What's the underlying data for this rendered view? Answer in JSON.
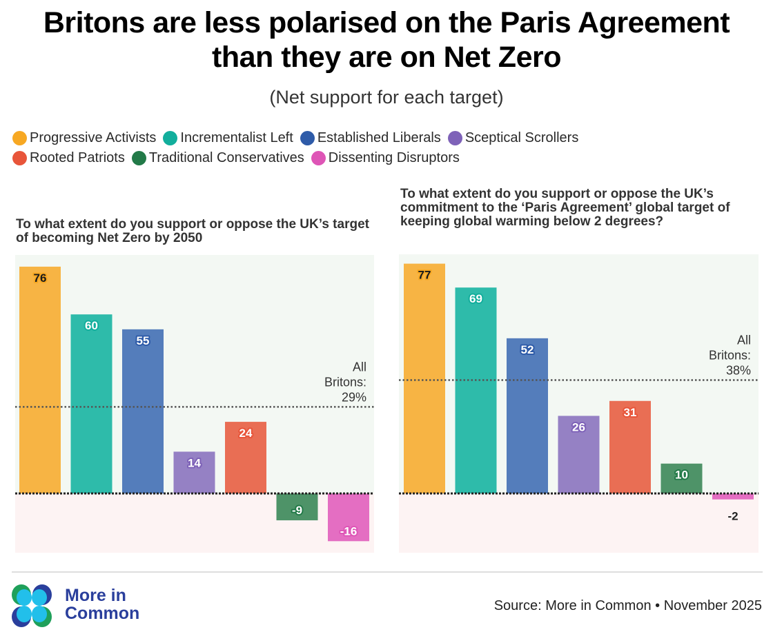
{
  "title_line1": "Britons are less polarised on the Paris Agreement",
  "title_line2": "than they are on Net Zero",
  "subtitle": "(Net support for each target)",
  "legend": {
    "row1": [
      {
        "label": "Progressive Activists",
        "color": "#F7A823"
      },
      {
        "label": "Incrementalist Left",
        "color": "#12AE9C"
      },
      {
        "label": "Established Liberals",
        "color": "#2E5BA8"
      },
      {
        "label": "Sceptical Scrollers",
        "color": "#7E62B8"
      }
    ],
    "row2": [
      {
        "label": "Rooted Patriots",
        "color": "#E8553A"
      },
      {
        "label": "Traditional Conservatives",
        "color": "#227A48"
      },
      {
        "label": "Dissenting Disruptors",
        "color": "#DE55B6"
      }
    ]
  },
  "chart_data": [
    {
      "type": "bar",
      "title": "To what extent do you support or oppose the UK’s target of becoming Net Zero by 2050",
      "categories": [
        "Progressive Activists",
        "Incrementalist Left",
        "Established Liberals",
        "Sceptical Scrollers",
        "Rooted Patriots",
        "Traditional Conservatives",
        "Dissenting Disruptors"
      ],
      "values": [
        76,
        60,
        55,
        14,
        24,
        -9,
        -16
      ],
      "bar_colors": [
        "#F7B444",
        "#2EBBAA",
        "#547DBB",
        "#9581C4",
        "#E96E54",
        "#4E9368",
        "#E46EC2"
      ],
      "label_colors": [
        "#1a1a1a",
        "#ffffff",
        "#ffffff",
        "#ffffff",
        "#ffffff",
        "#ffffff",
        "#ffffff"
      ],
      "label_halo_colors": [
        "#F7A823",
        "#12AE9C",
        "#2E5BA8",
        "#7E62B8",
        "#E8553A",
        "#227A48",
        "#DE55B6"
      ],
      "reference_line": {
        "value": 29,
        "label_lines": [
          "All",
          "Britons:",
          "29%"
        ]
      },
      "ylim": [
        -20,
        80
      ],
      "xlabel": "",
      "ylabel": ""
    },
    {
      "type": "bar",
      "title": "To what extent do you support or oppose the UK’s commitment to the ‘Paris Agreement’ global target of keeping global warming below 2 degrees?",
      "categories": [
        "Progressive Activists",
        "Incrementalist Left",
        "Established Liberals",
        "Sceptical Scrollers",
        "Rooted Patriots",
        "Traditional Conservatives",
        "Dissenting Disruptors"
      ],
      "values": [
        77,
        69,
        52,
        26,
        31,
        10,
        -2
      ],
      "bar_colors": [
        "#F7B444",
        "#2EBBAA",
        "#547DBB",
        "#9581C4",
        "#E96E54",
        "#4E9368",
        "#E46EC2"
      ],
      "label_colors": [
        "#1a1a1a",
        "#ffffff",
        "#ffffff",
        "#ffffff",
        "#ffffff",
        "#ffffff",
        "#222222"
      ],
      "label_halo_colors": [
        "#F7A823",
        "#12AE9C",
        "#2E5BA8",
        "#7E62B8",
        "#E8553A",
        "#227A48",
        "none"
      ],
      "reference_line": {
        "value": 38,
        "label_lines": [
          "All",
          "Britons:",
          "38%"
        ]
      },
      "ylim": [
        -20,
        80
      ],
      "xlabel": "",
      "ylabel": ""
    }
  ],
  "logo": {
    "line1": "More in",
    "line2": "Common"
  },
  "source": "Source: More in Common • November 2025"
}
